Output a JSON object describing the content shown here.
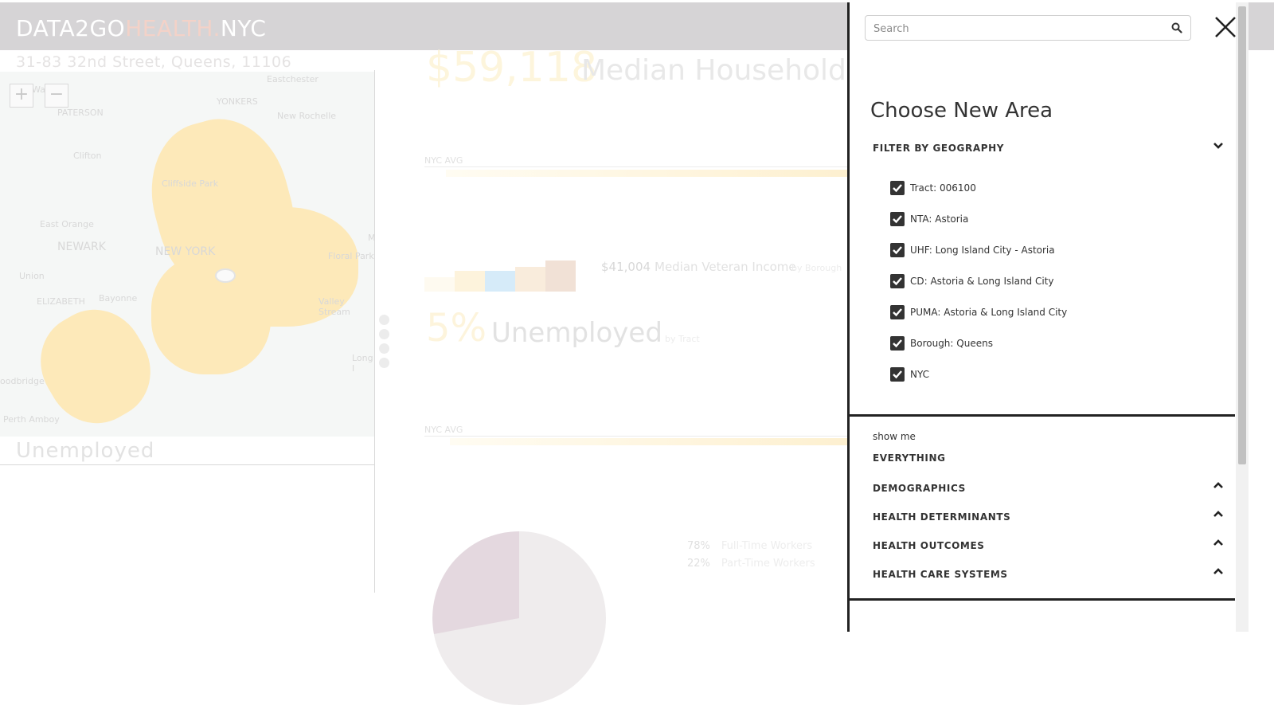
{
  "header": {
    "brand_part1": "DATA2GO",
    "brand_part2": "HEALTH.",
    "brand_part3": "NYC"
  },
  "location": {
    "address": "31-83 32nd Street, Queens, 11106"
  },
  "map": {
    "zoom_in_label": "+",
    "zoom_out_label": "−",
    "place_labels": {
      "eastchester": "Eastchester",
      "yonkers": "YONKERS",
      "paterson": "PATERSON",
      "new_rochelle": "New Rochelle",
      "clifton": "Clifton",
      "cliffside_park": "Cliffside Park",
      "east_orange": "East Orange",
      "newark": "NEWARK",
      "new_york": "NEW YORK",
      "floral_park": "Floral Park",
      "union": "Union",
      "elizabeth": "ELIZABETH",
      "bayonne": "Bayonne",
      "valley_stream": "Valley Stream",
      "long": "Long I",
      "woodbridge": "oodbridge",
      "perth_amboy": "Perth Amboy",
      "wa": "Wa",
      "m": "M"
    },
    "metric_label": "Unemployed"
  },
  "content": {
    "income_value": "$59,118",
    "income_label": "Median Household I",
    "nyc_avg_label_1": "NYC AVG",
    "veteran_value": "$41,004",
    "veteran_label": "Median Veteran Income",
    "veteran_by": "by Borough",
    "unemployed_value": "5%",
    "unemployed_label": "Unemployed",
    "unemployed_by": "by Tract",
    "nyc_avg_label_2": "NYC AVG",
    "fulltime_pct": "78%",
    "fulltime_label": "Full-Time Workers",
    "parttime_pct": "22%",
    "parttime_label": "Part-Time Workers"
  },
  "panel": {
    "search_placeholder": "Search",
    "title": "Choose New Area",
    "filter_geography_label": "FILTER BY GEOGRAPHY",
    "geographies": [
      {
        "label": "Tract: 006100",
        "checked": true
      },
      {
        "label": "NTA: Astoria",
        "checked": true
      },
      {
        "label": "UHF: Long Island City - Astoria",
        "checked": true
      },
      {
        "label": "CD: Astoria & Long Island City",
        "checked": true
      },
      {
        "label": "PUMA: Astoria & Long Island City",
        "checked": true
      },
      {
        "label": "Borough: Queens",
        "checked": true
      },
      {
        "label": "NYC",
        "checked": true
      }
    ],
    "show_me_label": "show me",
    "categories": {
      "everything": "EVERYTHING",
      "demographics": "DEMOGRAPHICS",
      "health_determinants": "HEALTH DETERMINANTS",
      "health_outcomes": "HEALTH OUTCOMES",
      "health_care_systems": "HEALTH CARE SYSTEMS"
    }
  },
  "colors": {
    "panel_text": "#333333",
    "brand_accent": "#f3d2c8",
    "header_bg": "#d6d4d6"
  }
}
